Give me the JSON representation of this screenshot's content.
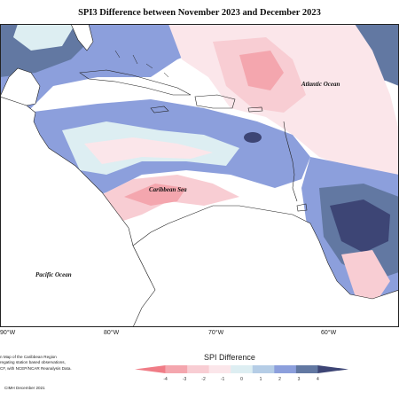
{
  "title": "SPI3 Difference between November 2023 and December 2023",
  "labels": {
    "atlantic": "Atlantic Ocean",
    "caribbean": "Caribbean Sea",
    "pacific": "Pacific Ocean"
  },
  "longitudes": [
    "90°W",
    "80°W",
    "70°W",
    "60°W"
  ],
  "credit_lines": [
    "n Map of the Caribbean Region",
    "regating station based observations,",
    "CF, with NCEP/NCAR Reanalysis Data."
  ],
  "copyright": "CIMH December 2021",
  "legend": {
    "title": "SPI Difference",
    "ticks": [
      "-4",
      "-3",
      "-2",
      "-1",
      "0",
      "1",
      "2",
      "3",
      "4"
    ],
    "colors": [
      "#f07c86",
      "#f4a6ae",
      "#f8cdd3",
      "#fbe6ea",
      "#ddeef2",
      "#b5cde6",
      "#8c9fdc",
      "#6278a2",
      "#3d4575"
    ]
  }
}
